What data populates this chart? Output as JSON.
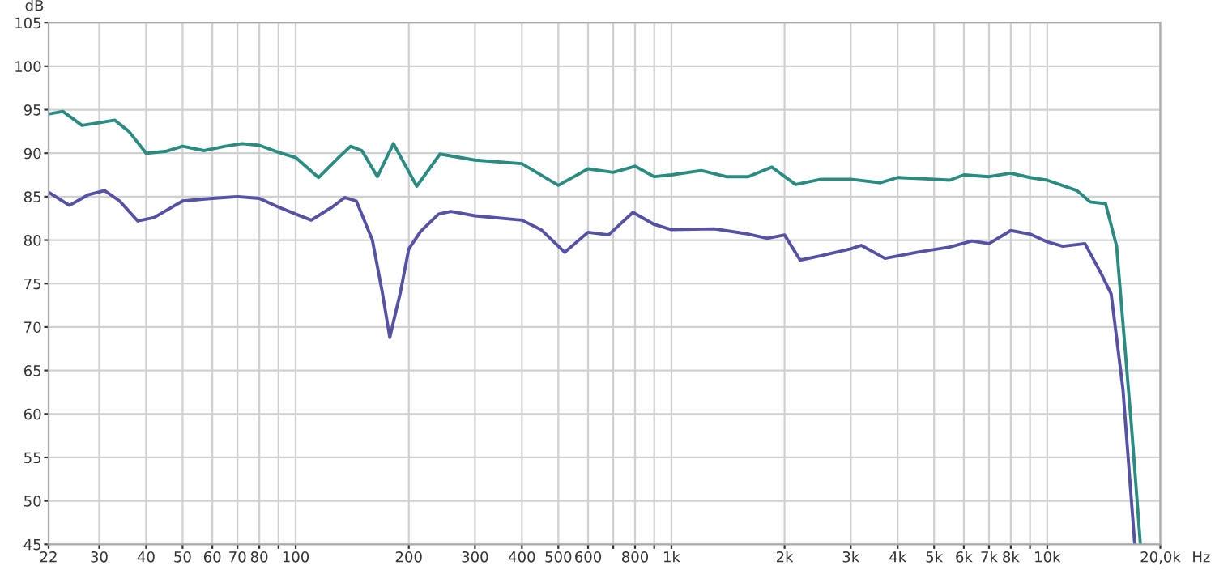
{
  "chart_data": {
    "type": "line",
    "xlabel": "Hz",
    "ylabel": "dB",
    "log": "x",
    "grid": true,
    "legend": false,
    "marker": "none",
    "line_style": "solid",
    "xlim": [
      22,
      20000
    ],
    "ylim": [
      45,
      105
    ],
    "xticks": [
      22,
      30,
      40,
      50,
      60,
      70,
      80,
      {
        "value": 90,
        "label": null
      },
      100,
      200,
      300,
      400,
      500,
      600,
      {
        "value": 700,
        "label": null
      },
      800,
      {
        "value": 900,
        "label": null
      },
      {
        "value": 1000,
        "label": "1k"
      },
      {
        "value": 2000,
        "label": "2k"
      },
      {
        "value": 3000,
        "label": "3k"
      },
      {
        "value": 4000,
        "label": "4k"
      },
      {
        "value": 5000,
        "label": "5k"
      },
      {
        "value": 6000,
        "label": "6k"
      },
      {
        "value": 7000,
        "label": "7k"
      },
      {
        "value": 8000,
        "label": "8k"
      },
      {
        "value": 9000,
        "label": null
      },
      {
        "value": 10000,
        "label": "10k"
      },
      {
        "value": 20000,
        "label": "20,0k"
      }
    ],
    "yticks": [
      45,
      50,
      55,
      60,
      65,
      70,
      75,
      80,
      85,
      90,
      95,
      100,
      105
    ],
    "series": [
      {
        "color": "#2a8c80",
        "x": [
          22,
          24,
          27,
          30,
          33,
          36,
          40,
          45,
          50,
          57,
          65,
          72,
          80,
          90,
          100,
          115,
          130,
          140,
          150,
          165,
          182,
          210,
          242,
          300,
          400,
          500,
          600,
          700,
          800,
          900,
          1000,
          1200,
          1400,
          1600,
          1850,
          2140,
          2500,
          3000,
          3600,
          4000,
          5000,
          5500,
          6000,
          7000,
          8000,
          9000,
          10000,
          12000,
          13000,
          14300,
          15300,
          16800,
          17700
        ],
        "values": [
          94.5,
          94.8,
          93.2,
          93.5,
          93.8,
          92.5,
          90.0,
          90.2,
          90.8,
          90.3,
          90.8,
          91.1,
          90.9,
          90.1,
          89.5,
          87.2,
          89.5,
          90.8,
          90.3,
          87.3,
          91.1,
          86.2,
          89.9,
          89.2,
          88.8,
          86.3,
          88.2,
          87.8,
          88.5,
          87.3,
          87.5,
          88.0,
          87.3,
          87.3,
          88.4,
          86.4,
          87.0,
          87.0,
          86.6,
          87.2,
          87.0,
          86.9,
          87.5,
          87.3,
          87.7,
          87.2,
          86.9,
          85.7,
          84.4,
          84.2,
          79.3,
          58,
          45
        ]
      },
      {
        "color": "#5552a6",
        "x": [
          22,
          25,
          28,
          31,
          34,
          38,
          42,
          50,
          60,
          70,
          80,
          90,
          100,
          110,
          125,
          135,
          145,
          160,
          170,
          178,
          190,
          200,
          215,
          240,
          259,
          300,
          400,
          450,
          520,
          600,
          680,
          790,
          900,
          1000,
          1300,
          1600,
          1800,
          2000,
          2200,
          2500,
          3000,
          3200,
          3700,
          4500,
          5500,
          6300,
          7000,
          8000,
          9000,
          10000,
          11000,
          12600,
          13900,
          14800,
          15900,
          17100
        ],
        "values": [
          85.5,
          84.0,
          85.2,
          85.7,
          84.5,
          82.2,
          82.6,
          84.5,
          84.8,
          85.0,
          84.8,
          83.8,
          83.0,
          82.3,
          83.8,
          84.9,
          84.5,
          80,
          74,
          68.8,
          74,
          79,
          81,
          83,
          83.3,
          82.8,
          82.3,
          81.2,
          78.6,
          80.9,
          80.6,
          83.2,
          81.8,
          81.2,
          81.3,
          80.7,
          80.2,
          80.6,
          77.7,
          78.2,
          79.0,
          79.4,
          77.9,
          78.6,
          79.2,
          79.9,
          79.6,
          81.1,
          80.7,
          79.8,
          79.3,
          79.6,
          76.2,
          73.8,
          62.9,
          45
        ]
      }
    ]
  }
}
